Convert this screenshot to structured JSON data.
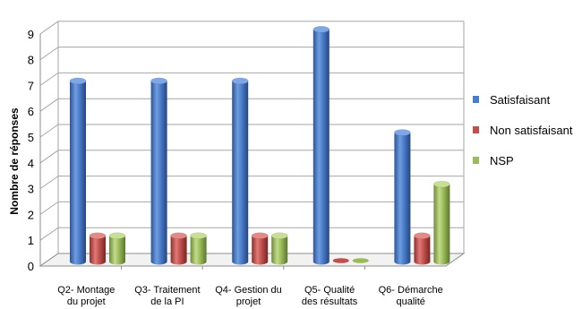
{
  "chart_data": {
    "type": "bar",
    "title": "",
    "xlabel": "",
    "ylabel": "Nombre de réponses",
    "ylim": [
      0,
      9
    ],
    "yticks": [
      "0",
      "1",
      "2",
      "3",
      "4",
      "5",
      "6",
      "7",
      "8",
      "9"
    ],
    "categories": [
      [
        "Q2- Montage",
        "du projet"
      ],
      [
        "Q3- Traitement",
        "de la PI"
      ],
      [
        "Q4- Gestion du",
        "projet"
      ],
      [
        "Q5- Qualité",
        "des résultats"
      ],
      [
        "Q6- Démarche",
        "qualité"
      ]
    ],
    "series": [
      {
        "name": "Satisfaisant",
        "values": [
          7,
          7,
          7,
          9,
          5
        ],
        "color": "#4a7cc9"
      },
      {
        "name": "Non satisfaisant",
        "values": [
          1,
          1,
          1,
          0,
          1
        ],
        "color": "#c0504d"
      },
      {
        "name": "NSP",
        "values": [
          1,
          1,
          1,
          0,
          3
        ],
        "color": "#9bbb59"
      }
    ],
    "grid": true,
    "legend_position": "right",
    "style": "3d-cylinder"
  }
}
